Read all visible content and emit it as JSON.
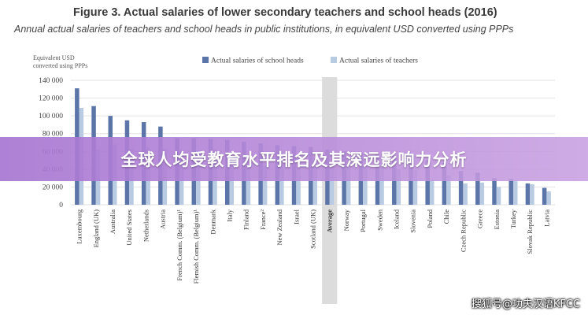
{
  "figure": {
    "title": "Figure 3. Actual salaries of lower secondary teachers and school heads (2016)",
    "subtitle": "Annual actual salaries of teachers and school heads in public institutions, in equivalent USD converted using PPPs"
  },
  "banner": {
    "text": "全球人均受教育水平排名及其深远影响力分析"
  },
  "watermark": {
    "text": "搜狐号@功夫汉语KFCC"
  },
  "colors": {
    "heads": "#5b75a8",
    "teachers": "#b9cbe2",
    "average_band": "#dcdcdc",
    "banner": "#b483d6"
  },
  "chart_data": {
    "type": "bar",
    "ylabel": "Equivalent USD converted using PPPs",
    "ylim": [
      0,
      140000
    ],
    "yticks": [
      0,
      20000,
      40000,
      60000,
      80000,
      100000,
      120000,
      140000
    ],
    "ytick_labels": [
      "0",
      "20 000",
      "40 000",
      "60 000",
      "80 000",
      "100 000",
      "120 000",
      "140 000"
    ],
    "legend_position": "top",
    "grid": true,
    "categories": [
      "Luxembourg",
      "England (UK)",
      "Australia",
      "United States",
      "Netherlands",
      "Austria",
      "French Comm. (Belgium)¹",
      "Flemish Comm. (Belgium)¹",
      "Denmark",
      "Italy",
      "Finland",
      "France²",
      "New Zealand",
      "Israel",
      "Scotland (UK)",
      "Average",
      "Norway",
      "Portugal",
      "Sweden",
      "Iceland",
      "Slovenia",
      "Poland",
      "Chile",
      "Czech Republic",
      "Greece",
      "Estonia",
      "Turkey",
      "Slovak Republic",
      "Latvia"
    ],
    "highlight_category": "Average",
    "series": [
      {
        "name": "Actual salaries of school heads",
        "values": [
          131000,
          111000,
          100000,
          95000,
          93000,
          88000,
          75000,
          75000,
          74000,
          73000,
          71000,
          69000,
          67000,
          66000,
          65000,
          62000,
          60000,
          58000,
          57000,
          55000,
          53000,
          50000,
          47000,
          38000,
          36000,
          30000,
          29000,
          24000,
          19000
        ]
      },
      {
        "name": "Actual salaries of teachers",
        "values": [
          109000,
          62000,
          68000,
          63000,
          65000,
          63000,
          60000,
          61000,
          63000,
          44000,
          50000,
          44000,
          50000,
          45000,
          52000,
          45000,
          52000,
          44000,
          44000,
          40000,
          39000,
          28000,
          33000,
          24000,
          25000,
          20000,
          27000,
          23000,
          15000
        ]
      }
    ]
  }
}
